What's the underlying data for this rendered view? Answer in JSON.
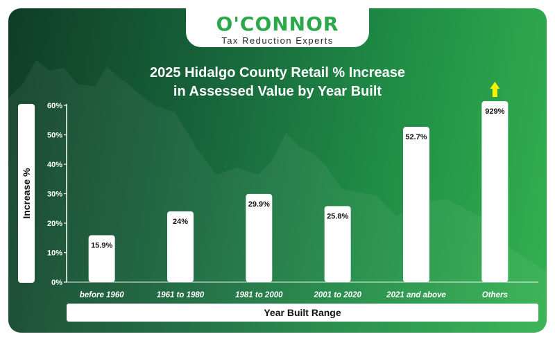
{
  "logo": {
    "name": "O'CONNOR",
    "tagline": "Tax Reduction Experts"
  },
  "colors": {
    "background_dark": "#0f3d27",
    "background_light": "#33b14f",
    "bar": "#ffffff",
    "arrow": "#f7f300"
  },
  "chart_data": {
    "type": "bar",
    "title": "2025 Hidalgo County Retail % Increase in Assessed Value by Year Built",
    "title_lines": [
      "2025 Hidalgo County Retail % Increase",
      "in Assessed Value by Year Built"
    ],
    "xlabel": "Year Built Range",
    "ylabel": "Increase %",
    "ylim": [
      0,
      60
    ],
    "yticks": [
      0,
      10,
      20,
      30,
      40,
      50,
      60
    ],
    "ytick_labels": [
      "0%",
      "10%",
      "20%",
      "30%",
      "40%",
      "50%",
      "60%"
    ],
    "categories": [
      "before 1960",
      "1961 to 1980",
      "1981 to 2000",
      "2001 to 2020",
      "2021 and above",
      "Others"
    ],
    "values": [
      15.9,
      24,
      29.9,
      25.8,
      52.7,
      929
    ],
    "data_labels": [
      "15.9%",
      "24%",
      "29.9%",
      "25.8%",
      "52.7%",
      "929%"
    ],
    "clipped_above_ylim": [
      "Others"
    ],
    "grid": false,
    "legend": "none"
  }
}
